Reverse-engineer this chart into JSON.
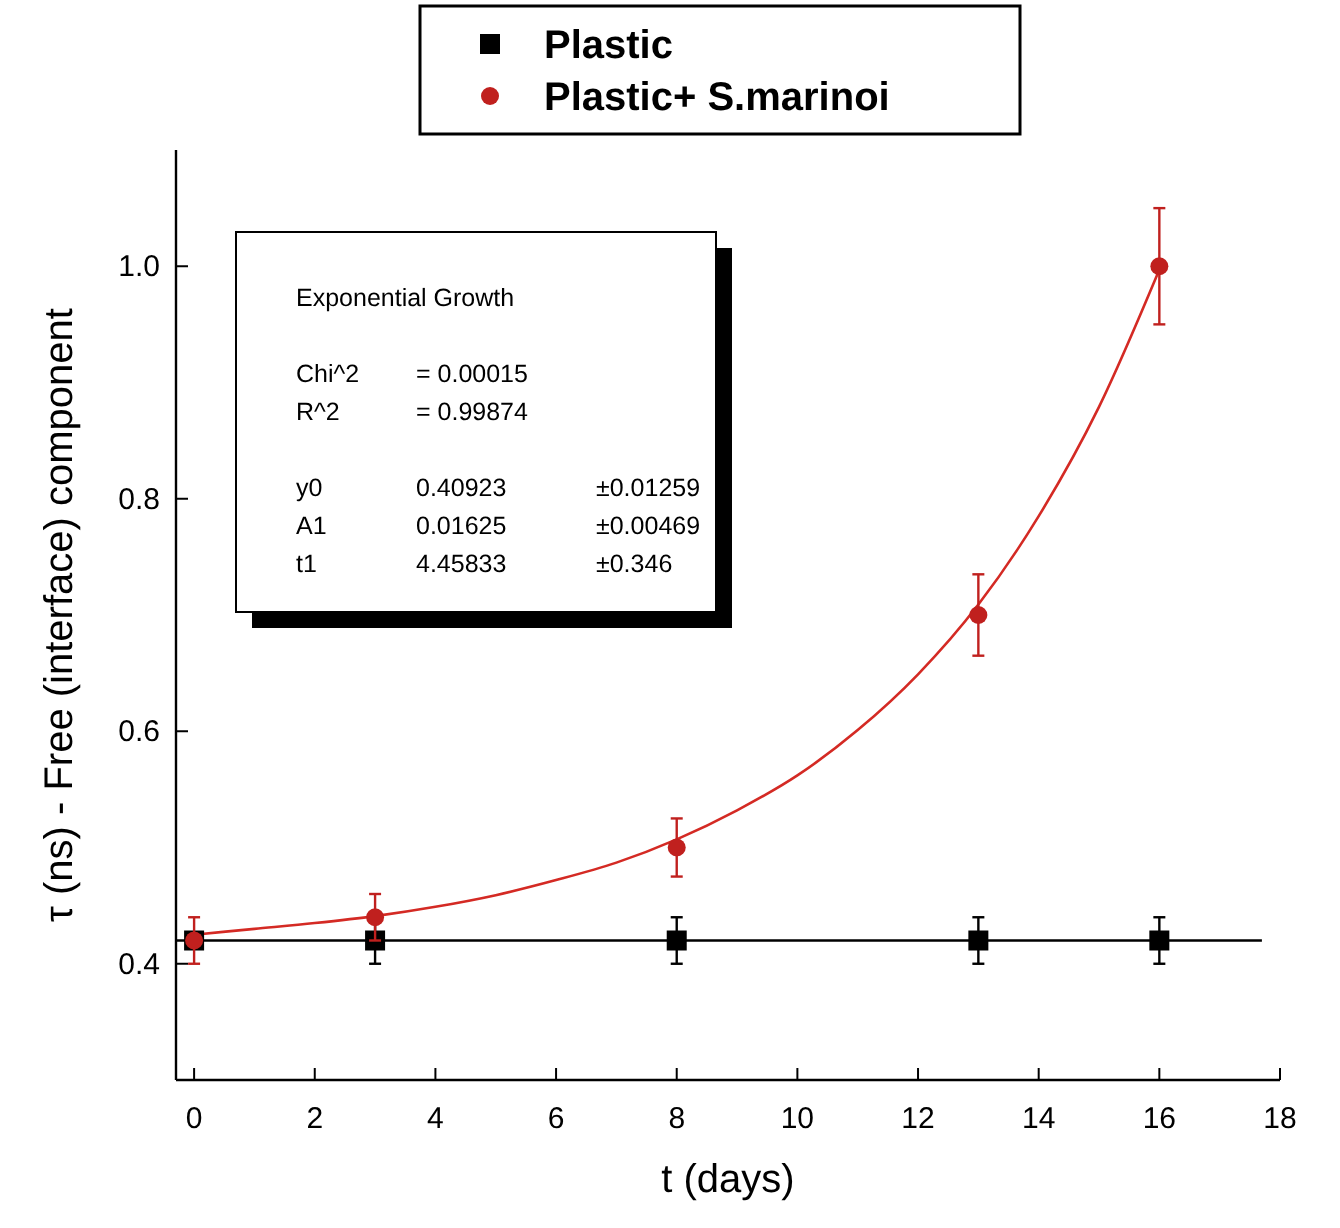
{
  "chart_data": {
    "type": "scatter",
    "xlabel": "t (days)",
    "ylabel": "τ (ns) - Free (interface) component",
    "xlim": [
      -0.3,
      18
    ],
    "ylim": [
      0.3,
      1.1
    ],
    "xticks": [
      0,
      2,
      4,
      6,
      8,
      10,
      12,
      14,
      16,
      18
    ],
    "yticks": [
      {
        "value": 0.4,
        "label": "0.4"
      },
      {
        "value": 0.6,
        "label": "0.6"
      },
      {
        "value": 0.8,
        "label": "0.8"
      },
      {
        "value": 1.0,
        "label": "1.0"
      }
    ],
    "grid": false,
    "legend": "top",
    "series": [
      {
        "name": "Plastic",
        "color": "#000000",
        "marker": "square",
        "x": [
          0,
          3,
          8,
          13,
          16
        ],
        "values": [
          0.42,
          0.42,
          0.42,
          0.42,
          0.42
        ],
        "errors": [
          null,
          0.02,
          0.02,
          0.02,
          0.02
        ]
      },
      {
        "name": "Plastic+ S.marinoi",
        "color": "#c0201e",
        "marker": "circle",
        "x": [
          0,
          3,
          8,
          13,
          16
        ],
        "values": [
          0.42,
          0.44,
          0.5,
          0.7,
          1.0
        ],
        "errors": [
          0.02,
          0.02,
          0.025,
          0.035,
          0.05
        ]
      },
      {
        "type": "line",
        "color": "#000000",
        "marker": "none",
        "x": [
          -0.3,
          17.7
        ],
        "values": [
          0.42,
          0.42
        ]
      },
      {
        "type": "line",
        "color": "#d42a24",
        "marker": "none",
        "x": [
          0,
          1,
          2,
          3,
          4,
          5,
          6,
          7,
          8,
          9,
          10,
          11,
          12,
          13,
          14,
          15,
          16
        ],
        "values": [
          0.425,
          0.43,
          0.435,
          0.441,
          0.449,
          0.459,
          0.472,
          0.487,
          0.507,
          0.532,
          0.562,
          0.601,
          0.649,
          0.709,
          0.785,
          0.879,
          0.997
        ]
      }
    ],
    "annotations": [
      "Exponential Growth",
      "Chi^2\t= 0.00015",
      "R^2\t= 0.99874",
      "y0\t0.40923\t±0.01259",
      "A1\t0.01625\t±0.00469",
      "t1\t4.45833\t±0.346"
    ]
  }
}
